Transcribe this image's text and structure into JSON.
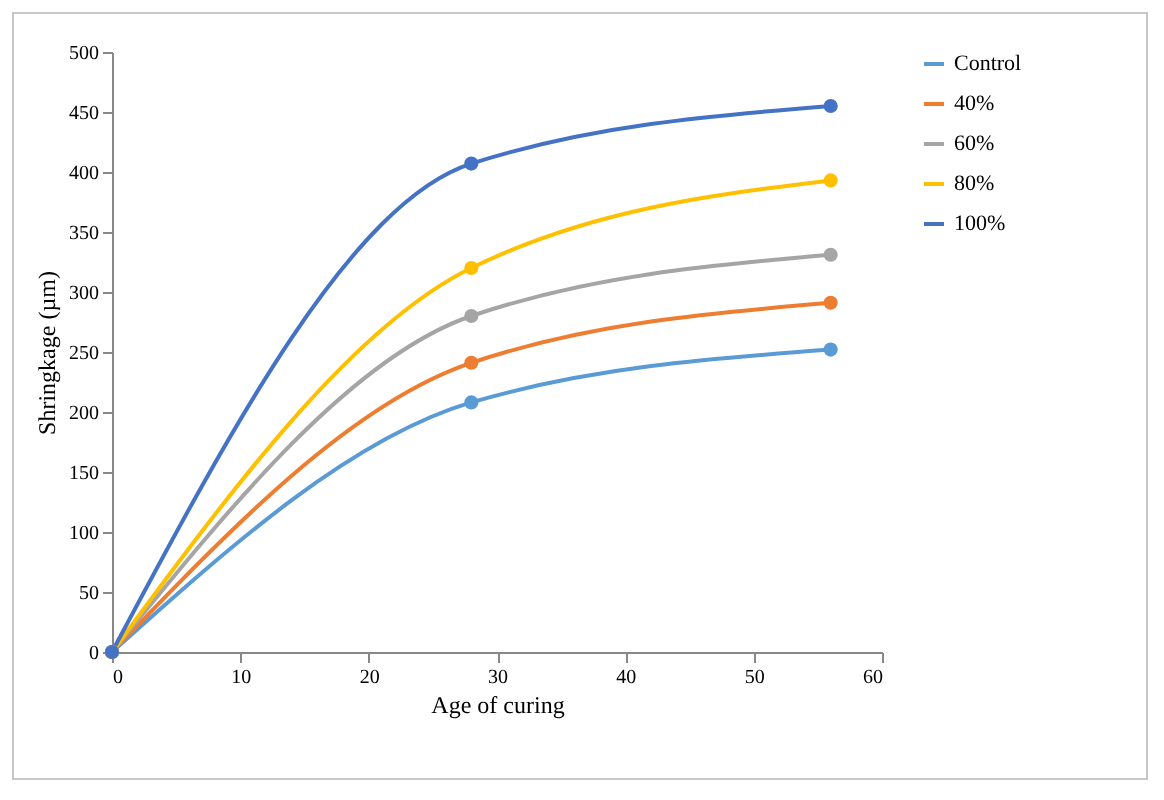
{
  "chart_data": {
    "type": "line",
    "xlabel": "Age of curing",
    "ylabel": "Shringkage (µm)",
    "x": [
      0,
      28,
      56
    ],
    "series": [
      {
        "name": "Control",
        "color": "#5b9bd5",
        "values": [
          0,
          208,
          252
        ]
      },
      {
        "name": "40%",
        "color": "#ed7d31",
        "values": [
          0,
          241,
          291
        ]
      },
      {
        "name": "60%",
        "color": "#a5a5a5",
        "values": [
          0,
          280,
          331
        ]
      },
      {
        "name": "80%",
        "color": "#ffc000",
        "values": [
          0,
          320,
          393
        ]
      },
      {
        "name": "100%",
        "color": "#4472c4",
        "values": [
          0,
          407,
          455
        ]
      }
    ],
    "xlim": [
      0,
      60
    ],
    "xticks": [
      0,
      10,
      20,
      30,
      40,
      50,
      60
    ],
    "ylim": [
      0,
      500
    ],
    "yticks": [
      0,
      50,
      100,
      150,
      200,
      250,
      300,
      350,
      400,
      450,
      500
    ],
    "grid": false,
    "legend": "right",
    "marker": "circle",
    "line_style": "solid"
  }
}
